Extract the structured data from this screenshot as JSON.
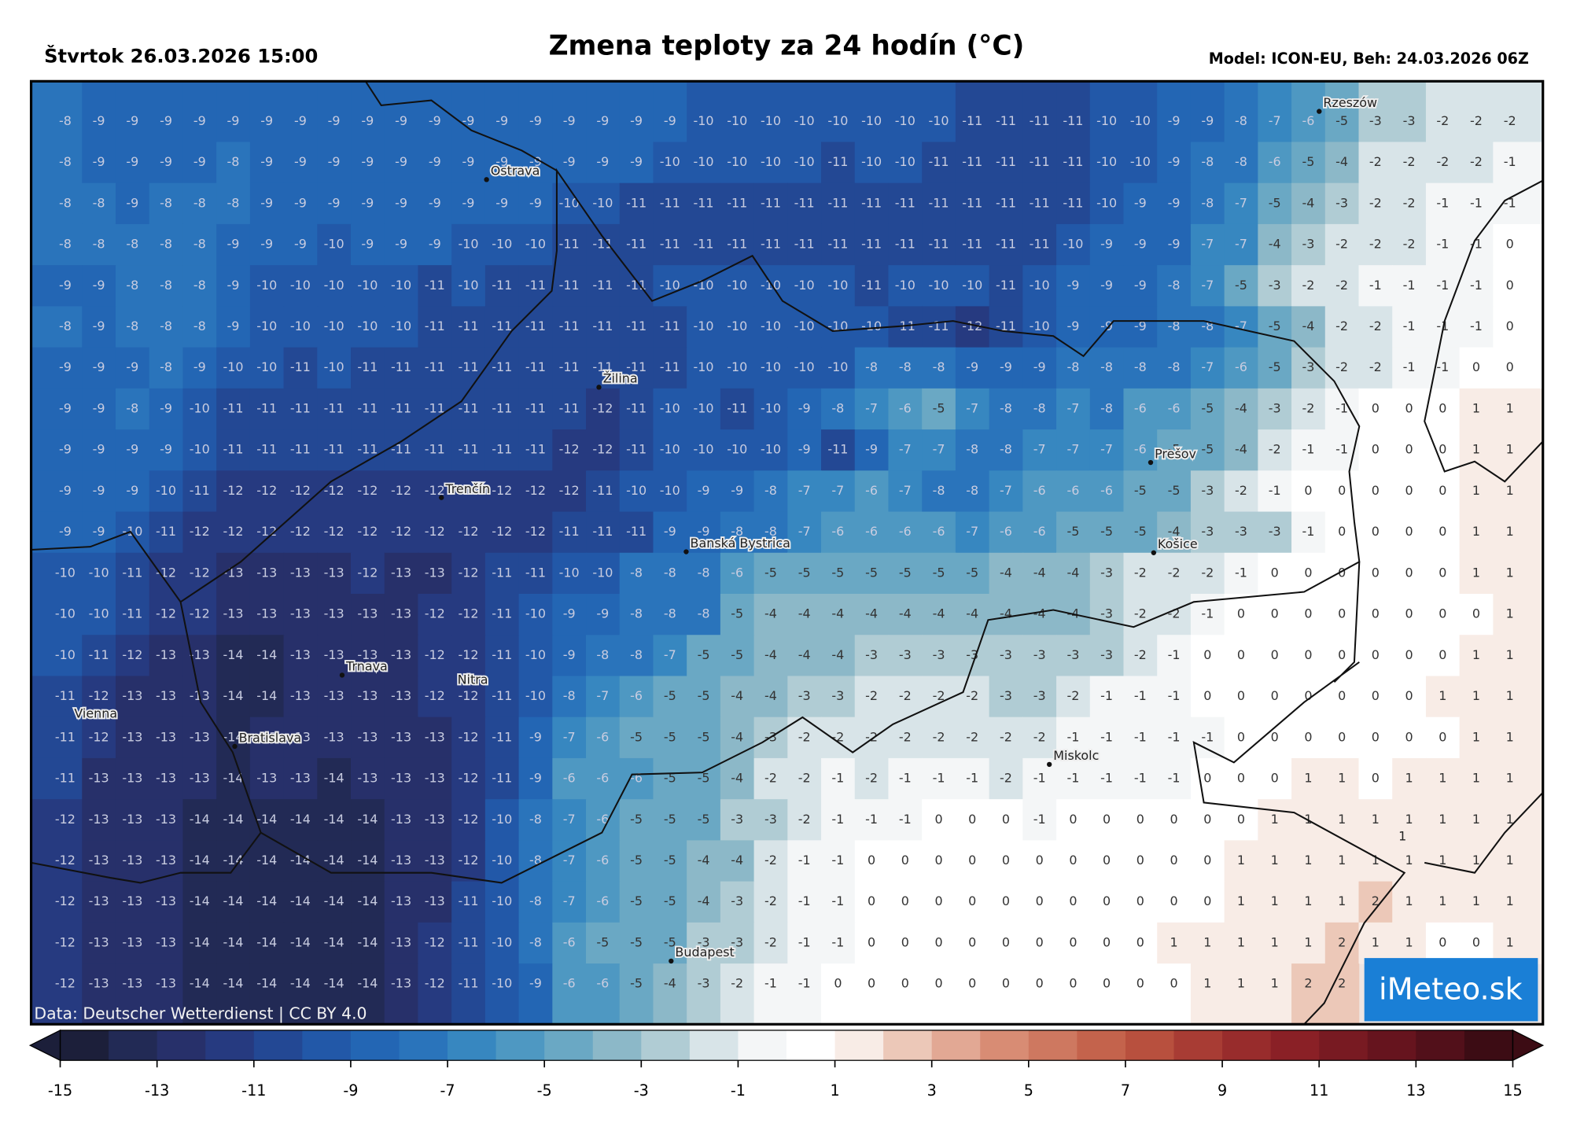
{
  "header": {
    "date": "Štvrtok 26.03.2026 15:00",
    "title": "Zmena teploty za 24 hodín (°C)",
    "model": "Model: ICON-EU, Beh: 24.03.2026 06Z"
  },
  "map": {
    "rows": [
      [
        -8,
        -9,
        -9,
        -9,
        -9,
        -9,
        -9,
        -9,
        -9,
        -9,
        -9,
        -9,
        -9,
        -9,
        -9,
        -9,
        -9,
        -9,
        -9,
        -10,
        -10,
        -10,
        -10,
        -10,
        -10,
        -10,
        -10,
        -11,
        -11,
        -11,
        -11,
        -10,
        -10,
        -9,
        -9,
        -8,
        -7,
        -6,
        -5,
        -3,
        -3,
        -2,
        -2,
        -2
      ],
      [
        -8,
        -9,
        -9,
        -9,
        -9,
        -8,
        -9,
        -9,
        -9,
        -9,
        -9,
        -9,
        -9,
        -9,
        -9,
        -9,
        -9,
        -9,
        -10,
        -10,
        -10,
        -10,
        -10,
        -11,
        -10,
        -10,
        -11,
        -11,
        -11,
        -11,
        -11,
        -10,
        -10,
        -9,
        -8,
        -8,
        -6,
        -5,
        -4,
        -2,
        -2,
        -2,
        -2,
        -1
      ],
      [
        -8,
        -8,
        -9,
        -8,
        -8,
        -8,
        -9,
        -9,
        -9,
        -9,
        -9,
        -9,
        -9,
        -9,
        -9,
        -10,
        -10,
        -11,
        -11,
        -11,
        -11,
        -11,
        -11,
        -11,
        -11,
        -11,
        -11,
        -11,
        -11,
        -11,
        -11,
        -10,
        -9,
        -9,
        -8,
        -7,
        -5,
        -4,
        -3,
        -2,
        -2,
        -1,
        -1,
        -1
      ],
      [
        -8,
        -8,
        -8,
        -8,
        -8,
        -9,
        -9,
        -9,
        -10,
        -9,
        -9,
        -9,
        -10,
        -10,
        -10,
        -11,
        -11,
        -11,
        -11,
        -11,
        -11,
        -11,
        -11,
        -11,
        -11,
        -11,
        -11,
        -11,
        -11,
        -11,
        -10,
        -9,
        -9,
        -9,
        -7,
        -7,
        -4,
        -3,
        -2,
        -2,
        -2,
        -1,
        -1,
        0
      ],
      [
        -9,
        -9,
        -8,
        -8,
        -8,
        -9,
        -10,
        -10,
        -10,
        -10,
        -10,
        -11,
        -10,
        -11,
        -11,
        -11,
        -11,
        -11,
        -10,
        -10,
        -10,
        -10,
        -10,
        -10,
        -11,
        -10,
        -10,
        -10,
        -11,
        -10,
        -9,
        -9,
        -9,
        -8,
        -7,
        -5,
        -3,
        -2,
        -2,
        -1,
        -1,
        -1,
        -1,
        0
      ],
      [
        -8,
        -9,
        -8,
        -8,
        -8,
        -9,
        -10,
        -10,
        -10,
        -10,
        -10,
        -11,
        -11,
        -11,
        -11,
        -11,
        -11,
        -11,
        -11,
        -10,
        -10,
        -10,
        -10,
        -10,
        -10,
        -11,
        -11,
        -12,
        -11,
        -10,
        -9,
        -9,
        -9,
        -8,
        -8,
        -7,
        -5,
        -4,
        -2,
        -2,
        -1,
        -1,
        -1,
        0
      ],
      [
        -9,
        -9,
        -9,
        -8,
        -9,
        -10,
        -10,
        -11,
        -10,
        -11,
        -11,
        -11,
        -11,
        -11,
        -11,
        -11,
        -11,
        -11,
        -11,
        -10,
        -10,
        -10,
        -10,
        -10,
        -8,
        -8,
        -8,
        -9,
        -9,
        -9,
        -8,
        -8,
        -8,
        -8,
        -7,
        -6,
        -5,
        -3,
        -2,
        -2,
        -1,
        -1,
        0,
        0
      ],
      [
        -9,
        -9,
        -8,
        -9,
        -10,
        -11,
        -11,
        -11,
        -11,
        -11,
        -11,
        -11,
        -11,
        -11,
        -11,
        -11,
        -12,
        -11,
        -10,
        -10,
        -11,
        -10,
        -9,
        -8,
        -7,
        -6,
        -5,
        -7,
        -8,
        -8,
        -7,
        -8,
        -6,
        -6,
        -5,
        -4,
        -3,
        -2,
        -1,
        0,
        0,
        0,
        1,
        1
      ],
      [
        -9,
        -9,
        -9,
        -9,
        -10,
        -11,
        -11,
        -11,
        -11,
        -11,
        -11,
        -11,
        -11,
        -11,
        -11,
        -12,
        -12,
        -11,
        -10,
        -10,
        -10,
        -10,
        -9,
        -11,
        -9,
        -7,
        -7,
        -8,
        -8,
        -7,
        -7,
        -7,
        -6,
        -5,
        -5,
        -4,
        -2,
        -1,
        -1,
        0,
        0,
        0,
        1,
        1
      ],
      [
        -9,
        -9,
        -9,
        -10,
        -11,
        -12,
        -12,
        -12,
        -12,
        -12,
        -12,
        -12,
        -12,
        -12,
        -12,
        -12,
        -11,
        -10,
        -10,
        -9,
        -9,
        -8,
        -7,
        -7,
        -6,
        -7,
        -8,
        -8,
        -7,
        -6,
        -6,
        -6,
        -5,
        -5,
        -3,
        -2,
        -1,
        0,
        0,
        0,
        0,
        0,
        1,
        1
      ],
      [
        -9,
        -9,
        -10,
        -11,
        -12,
        -12,
        -12,
        -12,
        -12,
        -12,
        -12,
        -12,
        -12,
        -12,
        -12,
        -11,
        -11,
        -11,
        -9,
        -9,
        -8,
        -8,
        -7,
        -6,
        -6,
        -6,
        -6,
        -7,
        -6,
        -6,
        -5,
        -5,
        -5,
        -4,
        -3,
        -3,
        -3,
        -1,
        0,
        0,
        0,
        0,
        1,
        1
      ],
      [
        -10,
        -10,
        -11,
        -12,
        -12,
        -13,
        -13,
        -13,
        -13,
        -12,
        -13,
        -13,
        -12,
        -11,
        -11,
        -10,
        -10,
        -8,
        -8,
        -8,
        -6,
        -5,
        -5,
        -5,
        -5,
        -5,
        -5,
        -5,
        -4,
        -4,
        -4,
        -3,
        -2,
        -2,
        -2,
        -1,
        0,
        0,
        0,
        0,
        0,
        0,
        1,
        1
      ],
      [
        -10,
        -10,
        -11,
        -12,
        -12,
        -13,
        -13,
        -13,
        -13,
        -13,
        -13,
        -12,
        -12,
        -11,
        -10,
        -9,
        -9,
        -8,
        -8,
        -8,
        -5,
        -4,
        -4,
        -4,
        -4,
        -4,
        -4,
        -4,
        -4,
        -4,
        -4,
        -3,
        -2,
        -2,
        -1,
        0,
        0,
        0,
        0,
        0,
        0,
        0,
        0,
        1
      ],
      [
        -10,
        -11,
        -12,
        -13,
        -13,
        -14,
        -14,
        -13,
        -13,
        -13,
        -13,
        -12,
        -12,
        -11,
        -10,
        -9,
        -8,
        -8,
        -7,
        -5,
        -5,
        -4,
        -4,
        -4,
        -3,
        -3,
        -3,
        -3,
        -3,
        -3,
        -3,
        -3,
        -2,
        -1,
        0,
        0,
        0,
        0,
        0,
        0,
        0,
        0,
        1,
        1
      ],
      [
        -11,
        -12,
        -13,
        -13,
        -13,
        -14,
        -14,
        -13,
        -13,
        -13,
        -13,
        -12,
        -12,
        -11,
        -10,
        -8,
        -7,
        -6,
        -5,
        -5,
        -4,
        -4,
        -3,
        -3,
        -2,
        -2,
        -2,
        -2,
        -3,
        -3,
        -2,
        -1,
        -1,
        -1,
        0,
        0,
        0,
        0,
        0,
        0,
        0,
        1,
        1,
        1
      ],
      [
        -11,
        -12,
        -13,
        -13,
        -13,
        -14,
        -13,
        -13,
        -13,
        -13,
        -13,
        -13,
        -12,
        -11,
        -9,
        -7,
        -6,
        -5,
        -5,
        -5,
        -4,
        -3,
        -2,
        -2,
        -2,
        -2,
        -2,
        -2,
        -2,
        -2,
        -1,
        -1,
        -1,
        -1,
        -1,
        0,
        0,
        0,
        0,
        0,
        0,
        0,
        1,
        1
      ],
      [
        -11,
        -13,
        -13,
        -13,
        -13,
        -14,
        -13,
        -13,
        -14,
        -13,
        -13,
        -13,
        -12,
        -11,
        -9,
        -6,
        -6,
        -6,
        -5,
        -5,
        -4,
        -2,
        -2,
        -1,
        -2,
        -1,
        -1,
        -1,
        -2,
        -1,
        -1,
        -1,
        -1,
        -1,
        0,
        0,
        0,
        1,
        1,
        0,
        1,
        1,
        1,
        1
      ],
      [
        -12,
        -13,
        -13,
        -13,
        -14,
        -14,
        -14,
        -14,
        -14,
        -14,
        -13,
        -13,
        -12,
        -10,
        -8,
        -7,
        -6,
        -5,
        -5,
        -5,
        -3,
        -3,
        -2,
        -1,
        -1,
        -1,
        0,
        0,
        0,
        -1,
        0,
        0,
        0,
        0,
        0,
        0,
        1,
        1,
        1,
        1,
        1,
        1,
        1,
        1
      ],
      [
        -12,
        -13,
        -13,
        -13,
        -14,
        -14,
        -14,
        -14,
        -14,
        -14,
        -13,
        -13,
        -12,
        -10,
        -8,
        -7,
        -6,
        -5,
        -5,
        -4,
        -4,
        -2,
        -1,
        -1,
        0,
        0,
        0,
        0,
        0,
        0,
        0,
        0,
        0,
        0,
        0,
        1,
        1,
        1,
        1,
        1,
        1,
        1,
        1,
        1
      ],
      [
        -12,
        -13,
        -13,
        -13,
        -14,
        -14,
        -14,
        -14,
        -14,
        -14,
        -13,
        -13,
        -11,
        -10,
        -8,
        -7,
        -6,
        -5,
        -5,
        -4,
        -3,
        -2,
        -1,
        -1,
        0,
        0,
        0,
        0,
        0,
        0,
        0,
        0,
        0,
        0,
        0,
        1,
        1,
        1,
        1,
        2,
        1,
        1,
        1,
        1
      ],
      [
        -12,
        -13,
        -13,
        -13,
        -14,
        -14,
        -14,
        -14,
        -14,
        -14,
        -13,
        -12,
        -11,
        -10,
        -8,
        -6,
        -5,
        -5,
        -5,
        -3,
        -3,
        -2,
        -1,
        -1,
        0,
        0,
        0,
        0,
        0,
        0,
        0,
        0,
        0,
        1,
        1,
        1,
        1,
        1,
        2,
        1,
        1,
        0,
        0,
        1
      ],
      [
        -12,
        -13,
        -13,
        -13,
        -14,
        -14,
        -14,
        -14,
        -14,
        -14,
        -13,
        -12,
        -11,
        -10,
        -9,
        -6,
        -6,
        -5,
        -4,
        -3,
        -2,
        -1,
        -1,
        0,
        0,
        0,
        0,
        0,
        0,
        0,
        0,
        0,
        0,
        0,
        1,
        1,
        1,
        2,
        2,
        null,
        null,
        null,
        null,
        null
      ]
    ],
    "contour_labels": [
      "1"
    ],
    "cities": [
      "Rzeszów",
      "Ostrava",
      "Žilina",
      "Prešov",
      "Trenčín",
      "Banská Bystrica",
      "Košice",
      "Trnava",
      "Nitra",
      "Vienna",
      "Bratislava",
      "Miskolc",
      "Budapest"
    ],
    "credit": "Data: Deutscher Wetterdienst | CC BY 4.0",
    "logo": "iMeteo.sk"
  },
  "colorbar": {
    "lim": [
      -15,
      15
    ],
    "ticks": [
      -15,
      -13,
      -11,
      -9,
      -7,
      -5,
      -3,
      -1,
      1,
      3,
      5,
      7,
      9,
      11,
      13,
      15
    ],
    "colors": [
      "#1c1f3a",
      "#222a55",
      "#27306a",
      "#263a80",
      "#234894",
      "#2258a8",
      "#2366b4",
      "#2a74bb",
      "#3787c0",
      "#4e98c2",
      "#6aa8c4",
      "#8cb8c8",
      "#b0ccd4",
      "#d8e4e8",
      "#f4f6f7",
      "#ffffff",
      "#f8ece6",
      "#ecc8b8",
      "#e2a894",
      "#d88c74",
      "#ce7860",
      "#c4634c",
      "#b8503e",
      "#a83c34",
      "#982c2c",
      "#8a2026",
      "#781a22",
      "#66141e",
      "#52101a",
      "#3c0c14"
    ]
  }
}
